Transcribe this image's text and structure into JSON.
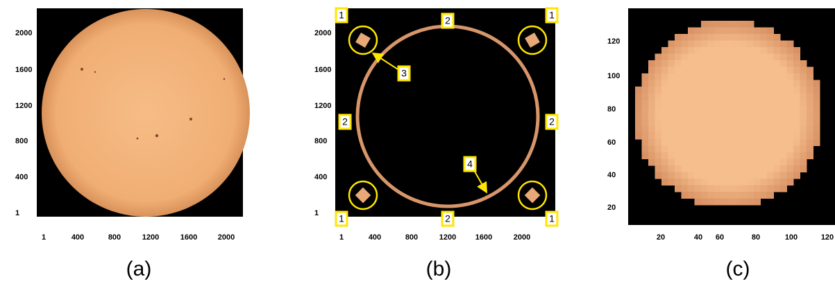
{
  "panels": [
    {
      "caption": "(a)",
      "xticks": [
        "1",
        "400",
        "800",
        "1200",
        "1600",
        "2000"
      ],
      "yticks": [
        "2000",
        "1600",
        "1200",
        "800",
        "400",
        "1"
      ]
    },
    {
      "caption": "(b)",
      "xticks": [
        "1",
        "400",
        "800",
        "1200",
        "1600",
        "2000"
      ],
      "yticks": [
        "2000",
        "1600",
        "1200",
        "800",
        "400",
        "1"
      ]
    },
    {
      "caption": "(c)",
      "xticks": [
        "20",
        "40",
        "60",
        "80",
        "100",
        "120"
      ],
      "yticks": [
        "120",
        "100",
        "80",
        "60",
        "40",
        "20"
      ]
    }
  ],
  "annotations": {
    "corner": "1",
    "edge": "2",
    "limb-patch": "3",
    "ring": "4"
  }
}
